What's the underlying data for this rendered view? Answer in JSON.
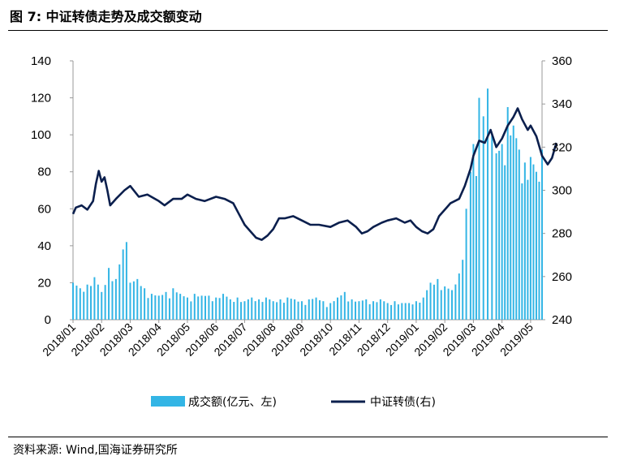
{
  "figure": {
    "title": "图 7:  中证转债走势及成交额变动",
    "source": "资料来源:  Wind,国海证券研究所"
  },
  "chart_data": {
    "type": "bar+line",
    "x_labels": [
      "2018/01",
      "2018/02",
      "2018/03",
      "2018/04",
      "2018/05",
      "2018/06",
      "2018/07",
      "2018/08",
      "2018/09",
      "2018/10",
      "2018/11",
      "2018/12",
      "2019/01",
      "2019/02",
      "2019/03",
      "2019/04",
      "2019/05"
    ],
    "y_left": {
      "ticks": [
        "0",
        "20",
        "40",
        "60",
        "80",
        "100",
        "120",
        "140"
      ],
      "min": 0,
      "max": 140
    },
    "y_right": {
      "ticks": [
        "240",
        "260",
        "280",
        "300",
        "320",
        "340",
        "360"
      ],
      "min": 240,
      "max": 360
    },
    "series": [
      {
        "name": "成交额(亿元、左)",
        "kind": "bar",
        "axis": "left",
        "color": "#33b5e5",
        "points": [
          [
            0,
            20
          ],
          [
            0.25,
            17
          ],
          [
            0.5,
            19
          ],
          [
            0.75,
            23
          ],
          [
            1.0,
            15
          ],
          [
            1.25,
            28
          ],
          [
            1.5,
            22
          ],
          [
            1.75,
            38
          ],
          [
            1.87,
            42
          ],
          [
            2.0,
            20
          ],
          [
            2.25,
            22
          ],
          [
            2.5,
            17
          ],
          [
            2.75,
            14
          ],
          [
            3.0,
            13
          ],
          [
            3.25,
            15
          ],
          [
            3.5,
            17
          ],
          [
            3.75,
            14
          ],
          [
            4.0,
            12
          ],
          [
            4.25,
            14
          ],
          [
            4.5,
            13
          ],
          [
            4.75,
            13
          ],
          [
            5.0,
            12
          ],
          [
            5.25,
            14
          ],
          [
            5.5,
            11
          ],
          [
            5.75,
            12
          ],
          [
            6.0,
            10
          ],
          [
            6.25,
            12
          ],
          [
            6.5,
            11
          ],
          [
            6.75,
            12
          ],
          [
            7.0,
            10
          ],
          [
            7.25,
            11
          ],
          [
            7.5,
            12
          ],
          [
            7.75,
            11
          ],
          [
            8.0,
            10
          ],
          [
            8.25,
            11
          ],
          [
            8.5,
            12
          ],
          [
            8.75,
            10
          ],
          [
            9.0,
            9
          ],
          [
            9.25,
            12
          ],
          [
            9.5,
            15
          ],
          [
            9.75,
            11
          ],
          [
            10.0,
            10
          ],
          [
            10.25,
            11
          ],
          [
            10.5,
            10
          ],
          [
            10.75,
            11
          ],
          [
            11.0,
            9
          ],
          [
            11.25,
            10
          ],
          [
            11.5,
            9
          ],
          [
            11.75,
            9
          ],
          [
            12.0,
            10
          ],
          [
            12.25,
            12
          ],
          [
            12.5,
            20
          ],
          [
            12.75,
            22
          ],
          [
            13.0,
            18
          ],
          [
            13.25,
            16
          ],
          [
            13.5,
            25
          ],
          [
            13.75,
            60
          ],
          [
            13.9,
            80
          ],
          [
            14.0,
            95
          ],
          [
            14.2,
            120
          ],
          [
            14.35,
            110
          ],
          [
            14.5,
            125
          ],
          [
            14.65,
            100
          ],
          [
            14.8,
            90
          ],
          [
            15.0,
            95
          ],
          [
            15.2,
            115
          ],
          [
            15.4,
            105
          ],
          [
            15.6,
            92
          ],
          [
            15.8,
            85
          ],
          [
            16.0,
            88
          ],
          [
            16.2,
            80
          ],
          [
            16.4,
            92
          ]
        ]
      },
      {
        "name": "中证转债(右)",
        "kind": "line",
        "axis": "right",
        "color": "#0b1f4d",
        "points": [
          [
            0,
            289
          ],
          [
            0.1,
            292
          ],
          [
            0.3,
            293
          ],
          [
            0.5,
            291
          ],
          [
            0.7,
            295
          ],
          [
            0.8,
            303
          ],
          [
            0.9,
            309
          ],
          [
            1.0,
            304
          ],
          [
            1.1,
            306
          ],
          [
            1.2,
            300
          ],
          [
            1.3,
            293
          ],
          [
            1.5,
            296
          ],
          [
            1.8,
            300
          ],
          [
            2.0,
            302
          ],
          [
            2.3,
            297
          ],
          [
            2.6,
            298
          ],
          [
            3.0,
            295
          ],
          [
            3.2,
            293
          ],
          [
            3.5,
            296
          ],
          [
            3.8,
            296
          ],
          [
            4.0,
            298
          ],
          [
            4.3,
            296
          ],
          [
            4.6,
            295
          ],
          [
            5.0,
            297
          ],
          [
            5.3,
            296
          ],
          [
            5.6,
            294
          ],
          [
            5.8,
            289
          ],
          [
            6.0,
            284
          ],
          [
            6.2,
            281
          ],
          [
            6.4,
            278
          ],
          [
            6.6,
            277
          ],
          [
            6.8,
            279
          ],
          [
            7.0,
            282
          ],
          [
            7.2,
            287
          ],
          [
            7.4,
            287
          ],
          [
            7.7,
            288
          ],
          [
            8.0,
            286
          ],
          [
            8.3,
            284
          ],
          [
            8.6,
            284
          ],
          [
            9.0,
            283
          ],
          [
            9.3,
            285
          ],
          [
            9.6,
            286
          ],
          [
            9.9,
            283
          ],
          [
            10.1,
            280
          ],
          [
            10.3,
            281
          ],
          [
            10.5,
            283
          ],
          [
            10.8,
            285
          ],
          [
            11.0,
            286
          ],
          [
            11.3,
            287
          ],
          [
            11.6,
            285
          ],
          [
            11.8,
            286
          ],
          [
            12.0,
            283
          ],
          [
            12.2,
            281
          ],
          [
            12.4,
            280
          ],
          [
            12.6,
            282
          ],
          [
            12.8,
            288
          ],
          [
            13.0,
            291
          ],
          [
            13.2,
            294
          ],
          [
            13.5,
            296
          ],
          [
            13.7,
            302
          ],
          [
            13.9,
            310
          ],
          [
            14.0,
            316
          ],
          [
            14.2,
            323
          ],
          [
            14.4,
            322
          ],
          [
            14.6,
            328
          ],
          [
            14.8,
            320
          ],
          [
            15.0,
            324
          ],
          [
            15.2,
            330
          ],
          [
            15.4,
            334
          ],
          [
            15.55,
            338
          ],
          [
            15.7,
            333
          ],
          [
            15.9,
            328
          ],
          [
            16.0,
            330
          ],
          [
            16.2,
            325
          ],
          [
            16.4,
            316
          ],
          [
            16.6,
            312
          ],
          [
            16.75,
            315
          ],
          [
            16.9,
            322
          ]
        ]
      }
    ]
  }
}
